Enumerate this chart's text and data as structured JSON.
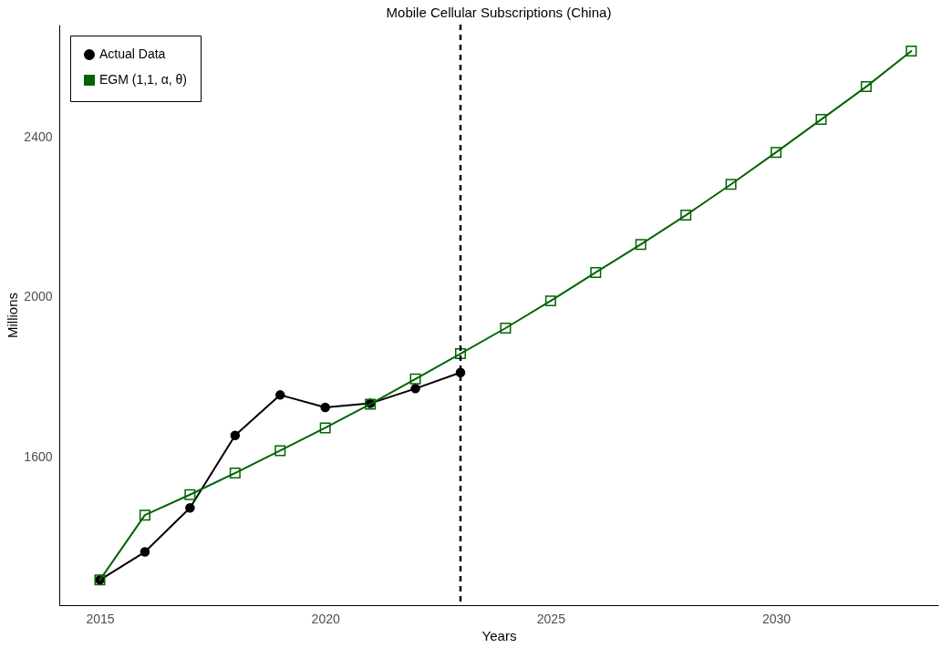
{
  "chart_data": {
    "type": "line",
    "title": "Mobile Cellular Subscriptions (China)",
    "xlabel": "Years",
    "ylabel": "Millions",
    "series": [
      {
        "name": "Actual Data",
        "color": "#000000",
        "marker": "circle",
        "x": [
          2015,
          2016,
          2017,
          2018,
          2019,
          2020,
          2021,
          2022,
          2023
        ],
        "values": [
          1293,
          1363,
          1473,
          1654,
          1755,
          1724,
          1734,
          1771,
          1811
        ]
      },
      {
        "name": "EGM (1,1, α, θ)",
        "color": "#006400",
        "marker": "square",
        "x": [
          2015,
          2016,
          2017,
          2018,
          2019,
          2020,
          2021,
          2022,
          2023,
          2024,
          2025,
          2026,
          2027,
          2028,
          2029,
          2030,
          2031,
          2032,
          2033
        ],
        "values": [
          1293,
          1455,
          1506,
          1560,
          1616,
          1673,
          1732,
          1795,
          1858,
          1922,
          1990,
          2061,
          2131,
          2204,
          2281,
          2361,
          2443,
          2525,
          2614
        ]
      }
    ],
    "xlim": [
      2014.1,
      2033.6
    ],
    "xticks": [
      2015,
      2020,
      2025,
      2030
    ],
    "ylim": [
      1230,
      2680
    ],
    "yticks": [
      1600,
      2000,
      2400
    ],
    "ref_lines": [
      {
        "axis": "x",
        "value": 2023,
        "color": "#000000",
        "line_style": "dashed"
      }
    ],
    "grid": false,
    "legend": "top left"
  }
}
